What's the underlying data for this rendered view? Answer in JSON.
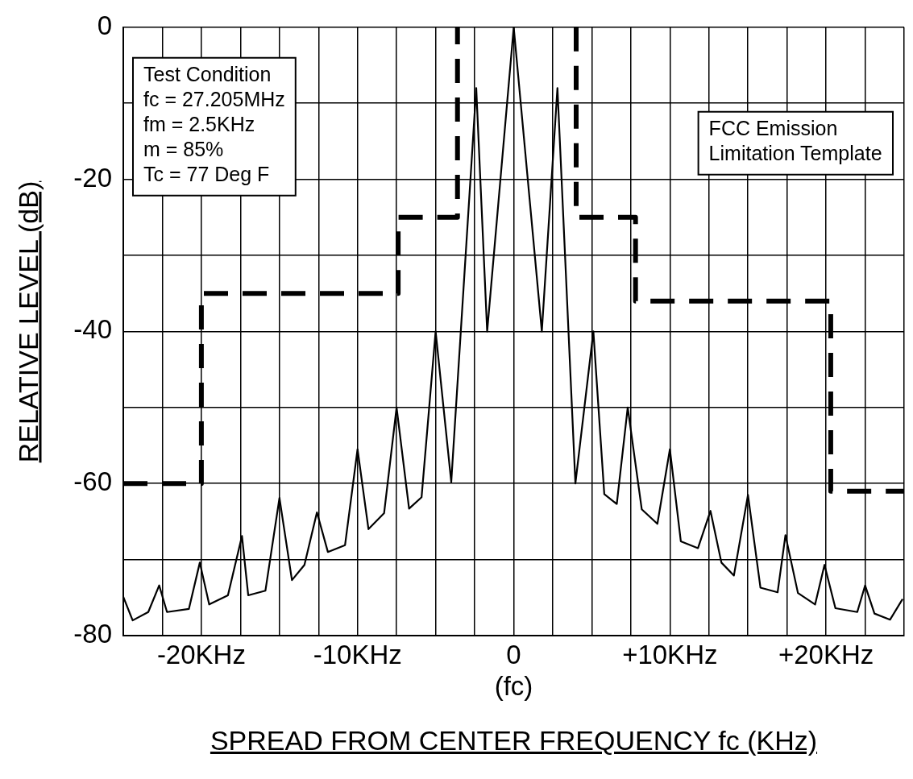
{
  "chart_data": {
    "type": "line",
    "xlabel": "SPREAD FROM CENTER FREQUENCY fc (KHz)",
    "ylabel": "RELATIVE LEVEL (dB)",
    "annotations": [
      "Test Condition\nfc = 27.205MHz\nfm = 2.5KHz\nm = 85%\nTc = 77 Deg F",
      "FCC Emission\nLimitation Template"
    ],
    "series": [
      {
        "color": "#000000",
        "line_style": "solid",
        "x": [
          -25,
          -24.4,
          -23.4,
          -22.7,
          -22.2,
          -20.8,
          -20.1,
          -19.5,
          -18.3,
          -17.4,
          -17,
          -15.9,
          -15,
          -14.2,
          -13.4,
          -12.6,
          -11.9,
          -10.8,
          -10,
          -9.3,
          -8.3,
          -7.5,
          -6.7,
          -5.9,
          -5,
          -4,
          -2.4,
          -1.7,
          0,
          1.8,
          2.8,
          3.95,
          5.1,
          5.8,
          6.6,
          7.3,
          8.2,
          9.2,
          10,
          10.7,
          11.8,
          12.6,
          13.3,
          14.1,
          15,
          15.8,
          16.9,
          17.4,
          18.2,
          19.3,
          19.9,
          20.6,
          22,
          22.5,
          23.1,
          24.1,
          24.9
        ],
        "values": [
          -74.9,
          -78,
          -76.9,
          -73.4,
          -76.9,
          -76.5,
          -70.4,
          -75.9,
          -74.7,
          -66.9,
          -74.7,
          -74.1,
          -61.9,
          -72.7,
          -70.7,
          -63.8,
          -69,
          -68.1,
          -55.5,
          -66,
          -63.9,
          -50,
          -63.3,
          -61.8,
          -40,
          -59.8,
          -8,
          -40,
          0,
          -40,
          -8,
          -60,
          -40,
          -61.4,
          -62.7,
          -50,
          -63.4,
          -65.3,
          -55.5,
          -67.6,
          -68.5,
          -63.6,
          -70.4,
          -72.1,
          -61.5,
          -73.7,
          -74.3,
          -66.8,
          -74.4,
          -75.9,
          -70.7,
          -76.4,
          -76.9,
          -73.4,
          -77.1,
          -77.9,
          -75.2
        ]
      },
      {
        "color": "#000000",
        "line_style": "dashed",
        "x": [
          -25,
          -20,
          -20,
          -7.4,
          -7.4,
          -3.6,
          -3.6
        ],
        "values": [
          -60,
          -60,
          -35,
          -35,
          -25,
          -25,
          0
        ]
      },
      {
        "color": "#000000",
        "line_style": "dashed",
        "x": [
          4,
          4,
          7.8,
          7.8,
          20.3,
          20.3,
          25
        ],
        "values": [
          0,
          -25,
          -25,
          -36,
          -36,
          -61,
          -61
        ]
      }
    ],
    "xlim": [
      -25,
      25
    ],
    "xticks": [
      {
        "value": -25,
        "label": null
      },
      {
        "value": -22.5,
        "label": null
      },
      {
        "value": -20,
        "label": "-20KHz"
      },
      {
        "value": -17.5,
        "label": null
      },
      {
        "value": -15,
        "label": null
      },
      {
        "value": -12.5,
        "label": null
      },
      {
        "value": -10,
        "label": "-10KHz"
      },
      {
        "value": -7.5,
        "label": null
      },
      {
        "value": -5,
        "label": null
      },
      {
        "value": -2.5,
        "label": null
      },
      {
        "value": 0,
        "label": "0\n(fc)"
      },
      {
        "value": 2.5,
        "label": null
      },
      {
        "value": 5,
        "label": null
      },
      {
        "value": 7.5,
        "label": null
      },
      {
        "value": 10,
        "label": "+10KHz"
      },
      {
        "value": 12.5,
        "label": null
      },
      {
        "value": 15,
        "label": null
      },
      {
        "value": 17.5,
        "label": null
      },
      {
        "value": 20,
        "label": "+20KHz"
      },
      {
        "value": 22.5,
        "label": null
      },
      {
        "value": 25,
        "label": null
      }
    ],
    "ylim": [
      -80,
      0
    ],
    "yticks": [
      -80,
      {
        "value": -70,
        "label": null
      },
      -60,
      {
        "value": -50,
        "label": null
      },
      -40,
      {
        "value": -30,
        "label": null
      },
      -20,
      {
        "value": -10,
        "label": null
      },
      0
    ],
    "grid": true,
    "legend": false,
    "marker": "none"
  }
}
